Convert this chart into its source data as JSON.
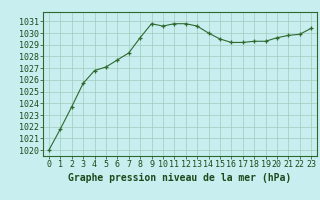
{
  "x": [
    0,
    1,
    2,
    3,
    4,
    5,
    6,
    7,
    8,
    9,
    10,
    11,
    12,
    13,
    14,
    15,
    16,
    17,
    18,
    19,
    20,
    21,
    22,
    23
  ],
  "y": [
    1020.0,
    1021.8,
    1023.7,
    1025.7,
    1026.8,
    1027.1,
    1027.7,
    1028.3,
    1029.6,
    1030.8,
    1030.6,
    1030.8,
    1030.8,
    1030.6,
    1030.0,
    1029.5,
    1029.2,
    1029.2,
    1029.3,
    1029.3,
    1029.6,
    1029.8,
    1029.9,
    1030.4
  ],
  "line_color": "#2d6a2d",
  "marker": "+",
  "marker_color": "#2d6a2d",
  "background_color": "#c8eef0",
  "grid_color": "#a0ccbb",
  "label": "Graphe pression niveau de la mer (hPa)",
  "label_color": "#1a4a1a",
  "ylim_min": 1019.5,
  "ylim_max": 1031.8,
  "ytick_min": 1020,
  "ytick_max": 1031,
  "ytick_step": 1,
  "xtick_labels": [
    "0",
    "1",
    "2",
    "3",
    "4",
    "5",
    "6",
    "7",
    "8",
    "9",
    "10",
    "11",
    "12",
    "13",
    "14",
    "15",
    "16",
    "17",
    "18",
    "19",
    "20",
    "21",
    "22",
    "23"
  ],
  "label_fontsize": 7.0,
  "tick_fontsize": 6.0,
  "tick_color": "#1a4a1a",
  "border_color": "#2d6a2d",
  "linewidth": 0.8,
  "markersize": 3.5,
  "markeredgewidth": 0.9
}
